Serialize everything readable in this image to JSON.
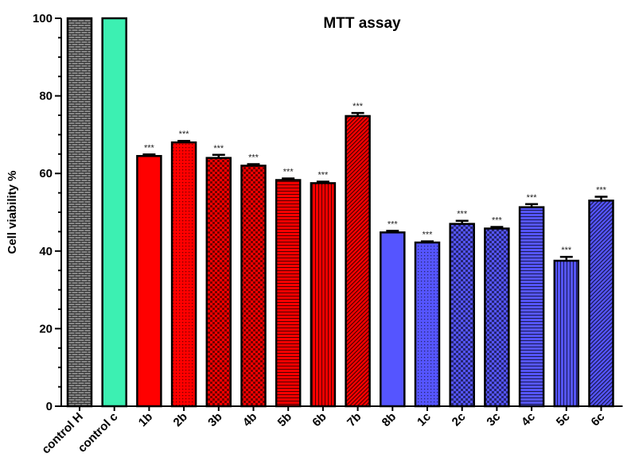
{
  "chart_data": {
    "type": "bar",
    "title": "MTT assay",
    "xlabel": "",
    "ylabel": "Cell viability %",
    "ylim": [
      0,
      100
    ],
    "yticks": [
      0,
      20,
      40,
      60,
      80,
      100
    ],
    "categories": [
      "control H",
      "control c",
      "1b",
      "2b",
      "3b",
      "4b",
      "5b",
      "6b",
      "7b",
      "8b",
      "1c",
      "2c",
      "3c",
      "4c",
      "5c",
      "6c"
    ],
    "values": [
      100,
      100,
      64.5,
      68,
      64,
      62,
      58.3,
      57.5,
      74.8,
      44.8,
      42.2,
      47,
      45.8,
      51.3,
      37.5,
      53
    ],
    "errors": [
      0,
      0,
      0.4,
      0.4,
      0.8,
      0.4,
      0.4,
      0.4,
      0.8,
      0.4,
      0.3,
      0.8,
      0.4,
      0.8,
      1.0,
      1.0
    ],
    "annotations": [
      "",
      "",
      "***",
      "***",
      "***",
      "***",
      "***",
      "***",
      "***",
      "***",
      "***",
      "***",
      "***",
      "***",
      "***",
      "***"
    ],
    "colors": [
      "#888888",
      "#3cf0b2",
      "#ff0000",
      "#ff0000",
      "#ff0000",
      "#ff0000",
      "#ff0000",
      "#ff0000",
      "#ff0000",
      "#5555ff",
      "#5555ff",
      "#5555ff",
      "#5555ff",
      "#5555ff",
      "#5555ff",
      "#5555ff"
    ],
    "patterns": [
      "bricks",
      "none",
      "none",
      "dots",
      "checker",
      "checker",
      "hlines",
      "vlines",
      "diag",
      "none",
      "dots",
      "checker",
      "checker",
      "hlines",
      "vlines",
      "diag"
    ],
    "grid": false,
    "legend": "none"
  }
}
